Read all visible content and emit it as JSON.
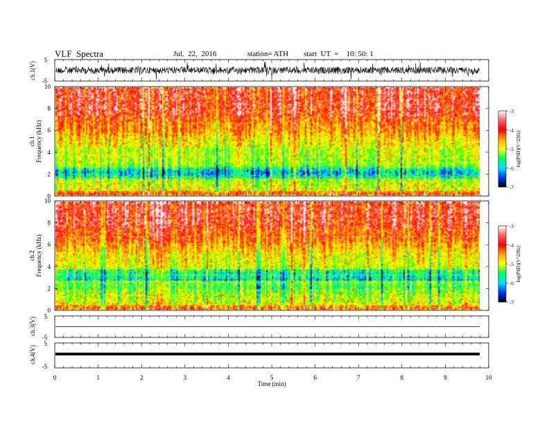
{
  "header": {
    "title": "VLF  Spectra",
    "date": "Jul.  22,  2016",
    "station": "station= ATH",
    "start": "start  UT  =    10: 50: 1"
  },
  "chart_data": [
    {
      "type": "line",
      "panel": "ch1-waveform",
      "ylabel": "ch.1(V)",
      "ylim": [
        -5,
        5
      ],
      "yticks": [
        "5",
        "-5"
      ],
      "xlim": [
        0,
        10
      ]
    },
    {
      "type": "heatmap",
      "panel": "ch1-spectrogram",
      "ylabel": "Frequency  (kHz)",
      "ylabel_prefix": "ch.1",
      "ylim": [
        0,
        10
      ],
      "yticks": [
        "0",
        "2",
        "4",
        "6",
        "8",
        "10"
      ],
      "xlim": [
        0,
        10
      ],
      "colorbar": {
        "label": "log(PSD)(V^2/Hz)",
        "range": [
          -7,
          -3
        ],
        "ticks": [
          "-3",
          "-4",
          "-5",
          "-6",
          "-7"
        ]
      }
    },
    {
      "type": "heatmap",
      "panel": "ch2-spectrogram",
      "ylabel": "Frequency  (kHz)",
      "ylabel_prefix": "ch.2",
      "ylim": [
        0,
        10
      ],
      "yticks": [
        "0",
        "2",
        "4",
        "6",
        "8",
        "10"
      ],
      "xlim": [
        0,
        10
      ],
      "colorbar": {
        "label": "log(PSD)(V^2/Hz)",
        "range": [
          -7,
          -3
        ],
        "ticks": [
          "-3",
          "-4",
          "-5",
          "-6",
          "-7"
        ]
      }
    },
    {
      "type": "line",
      "panel": "ch3-waveform",
      "ylabel": "ch.3(V)",
      "ylim": [
        -5,
        5
      ],
      "yticks": [
        "5",
        "-5"
      ],
      "xlim": [
        0,
        10
      ]
    },
    {
      "type": "line",
      "panel": "ch4-waveform",
      "ylabel": "ch.4(V)",
      "ylim": [
        -5,
        5
      ],
      "yticks": [
        "5",
        "-5"
      ],
      "xlim": [
        0,
        10
      ],
      "xlabel": "Time  (min)",
      "xticks": [
        "0",
        "1",
        "2",
        "3",
        "4",
        "5",
        "6",
        "7",
        "8",
        "9",
        "10"
      ]
    }
  ]
}
